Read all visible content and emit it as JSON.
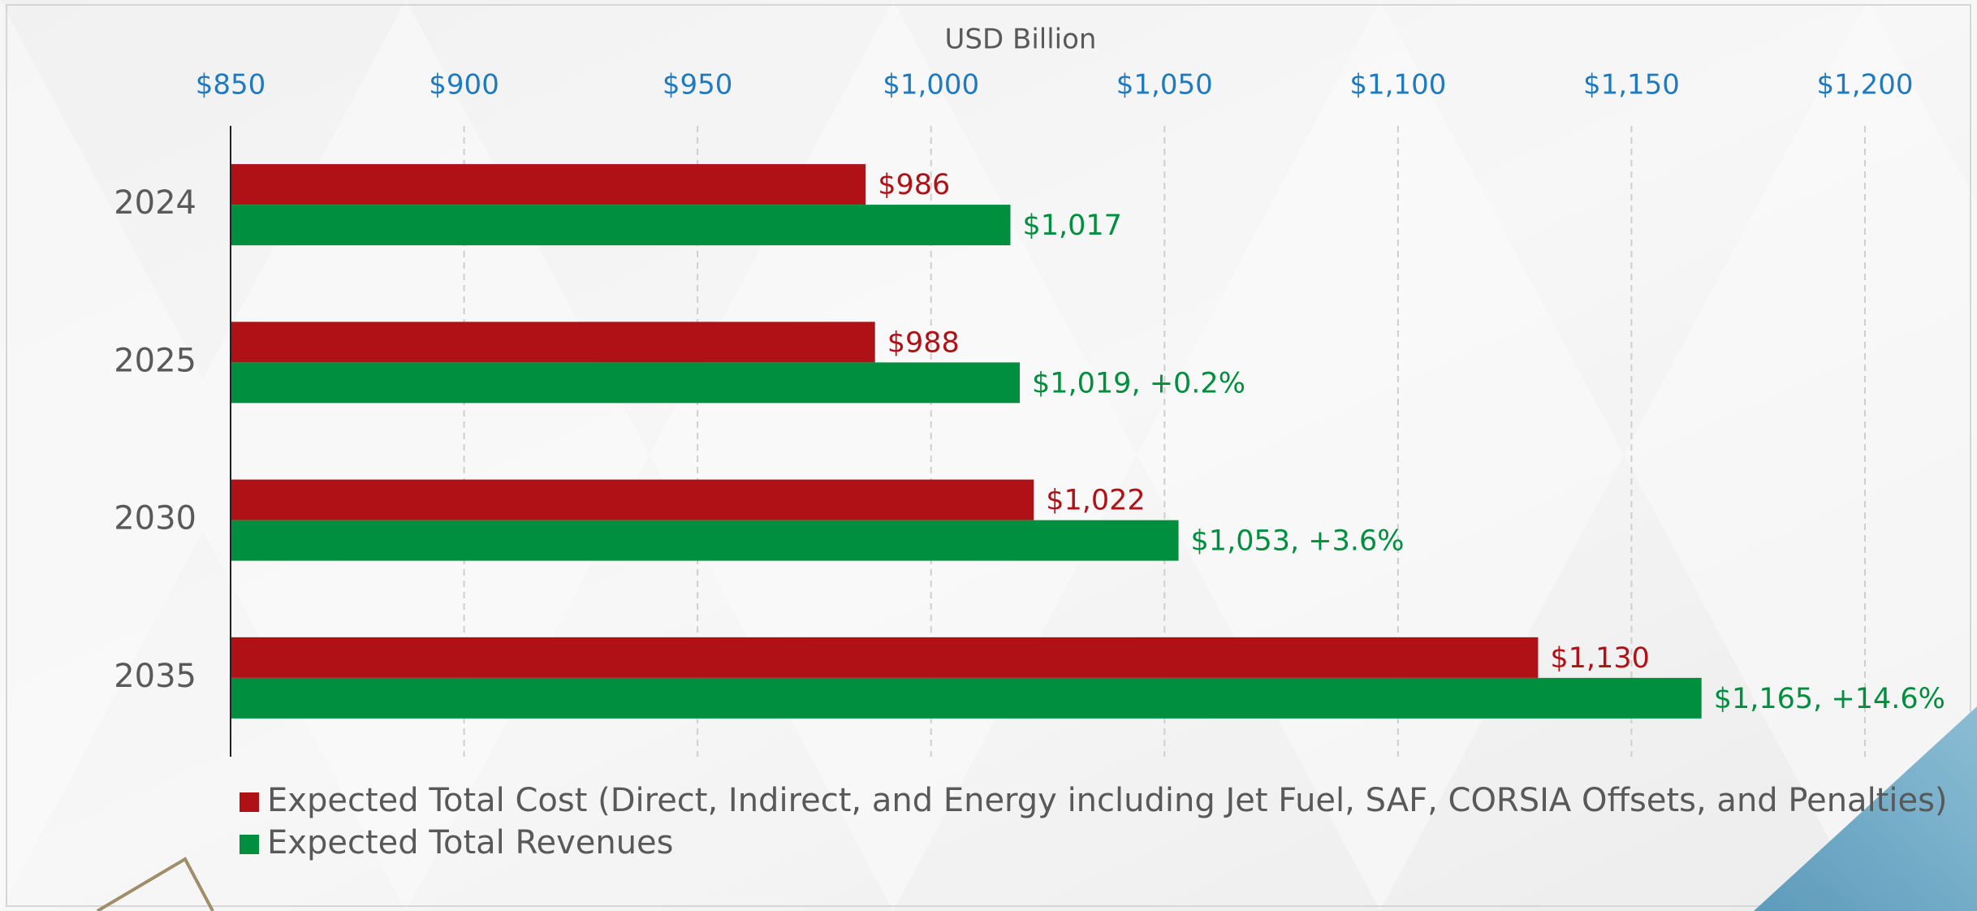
{
  "chart_data": {
    "type": "barh",
    "xlabel": "USD Billion",
    "categories": [
      "2024",
      "2025",
      "2030",
      "2035"
    ],
    "series": [
      {
        "name": "Expected Total Cost (Direct, Indirect, and Energy including Jet Fuel, SAF, CORSIA Offsets, and Penalties)",
        "color": "#b01116",
        "values": [
          986,
          988,
          1022,
          1130
        ],
        "value_labels": [
          "$986",
          "$988",
          "$1,022",
          "$1,130"
        ]
      },
      {
        "name": "Expected Total Revenues",
        "color": "#008f3e",
        "values": [
          1017,
          1019,
          1053,
          1165
        ],
        "value_labels": [
          "$1,017",
          "$1,019, +0.2%",
          "$1,053, +3.6%",
          "$1,165, +14.6%"
        ]
      }
    ],
    "xlim": [
      850,
      1200
    ],
    "xticks": [
      {
        "value": 850,
        "label": "$850"
      },
      {
        "value": 900,
        "label": "$900"
      },
      {
        "value": 950,
        "label": "$950"
      },
      {
        "value": 1000,
        "label": "$1,000"
      },
      {
        "value": 1050,
        "label": "$1,050"
      },
      {
        "value": 1100,
        "label": "$1,100"
      },
      {
        "value": 1150,
        "label": "$1,150"
      },
      {
        "value": 1200,
        "label": "$1,200"
      }
    ],
    "grid": true,
    "legend": "bottom"
  }
}
